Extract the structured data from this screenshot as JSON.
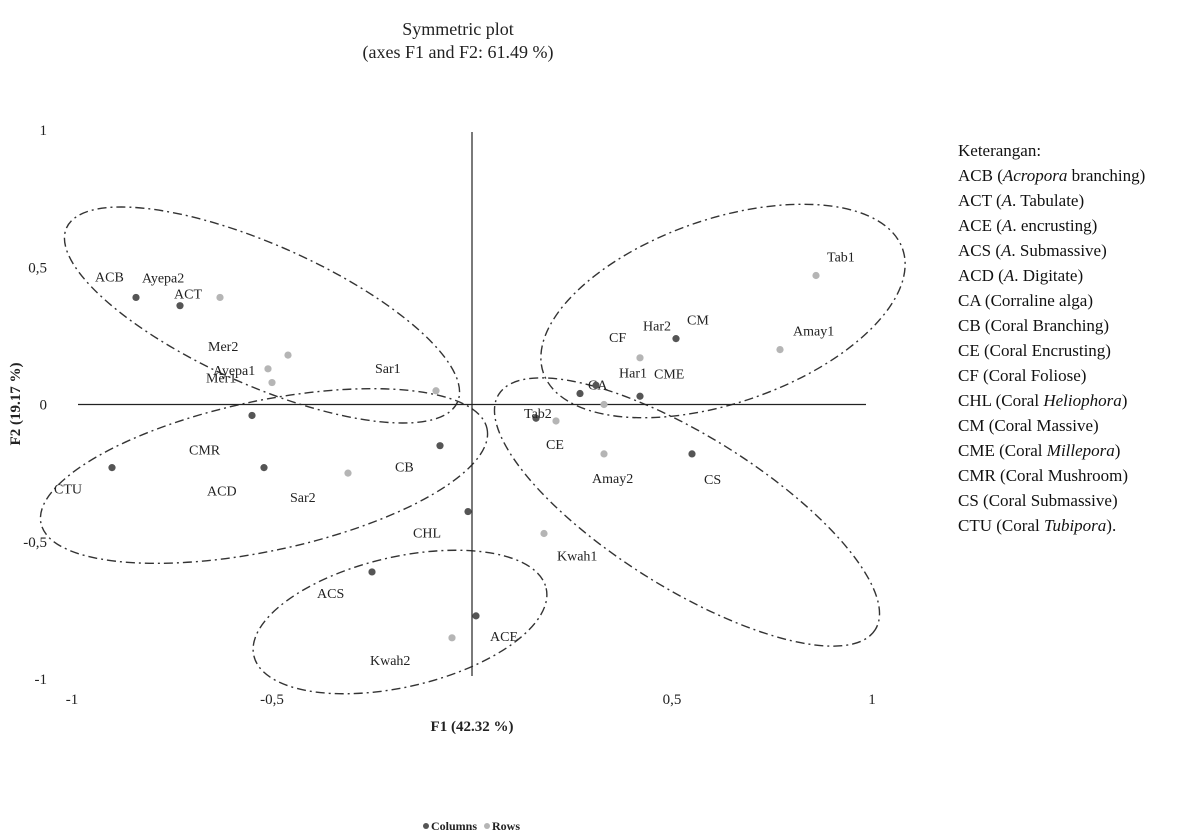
{
  "chart_data": {
    "type": "scatter",
    "title": "Symmetric plot",
    "subtitle": "(axes F1 and F2: 61.49 %)",
    "xlabel": "F1 (42.32 %)",
    "ylabel": "F2 (19.17 %)",
    "xlim": [
      -1,
      1
    ],
    "ylim": [
      -1,
      1
    ],
    "xticks": [
      "-1",
      "-0,5",
      "0",
      "0,5",
      "1"
    ],
    "yticks": [
      "1",
      "0,5",
      "0",
      "-0,5",
      "-1"
    ],
    "grid": false,
    "legend_position": "bottom",
    "series": [
      {
        "name": "Columns",
        "color": "#555555",
        "points": [
          {
            "label": "ACB",
            "x": -0.84,
            "y": 0.39
          },
          {
            "label": "ACT",
            "x": -0.73,
            "y": 0.36
          },
          {
            "label": "CMR",
            "x": -0.55,
            "y": -0.04
          },
          {
            "label": "CTU",
            "x": -0.9,
            "y": -0.23
          },
          {
            "label": "ACD",
            "x": -0.52,
            "y": -0.23
          },
          {
            "label": "CB",
            "x": -0.08,
            "y": -0.15
          },
          {
            "label": "CHL",
            "x": -0.01,
            "y": -0.39
          },
          {
            "label": "ACS",
            "x": -0.25,
            "y": -0.61
          },
          {
            "label": "ACE",
            "x": 0.01,
            "y": -0.77
          },
          {
            "label": "CA",
            "x": 0.27,
            "y": 0.04
          },
          {
            "label": "Har1",
            "x": 0.31,
            "y": 0.07
          },
          {
            "label": "CME",
            "x": 0.42,
            "y": 0.03
          },
          {
            "label": "CM",
            "x": 0.51,
            "y": 0.24
          },
          {
            "label": "CE",
            "x": 0.16,
            "y": -0.05
          },
          {
            "label": "CS",
            "x": 0.55,
            "y": -0.18
          }
        ]
      },
      {
        "name": "Rows",
        "color": "#b5b5b5",
        "points": [
          {
            "label": "Ayepa2",
            "x": -0.63,
            "y": 0.39
          },
          {
            "label": "Ayepa1",
            "x": -0.51,
            "y": 0.13
          },
          {
            "label": "Mer2",
            "x": -0.46,
            "y": 0.18
          },
          {
            "label": "Mer1",
            "x": -0.5,
            "y": 0.08
          },
          {
            "label": "Sar1",
            "x": -0.09,
            "y": 0.05
          },
          {
            "label": "Sar2",
            "x": -0.31,
            "y": -0.25
          },
          {
            "label": "Kwah1",
            "x": 0.18,
            "y": -0.47
          },
          {
            "label": "Kwah2",
            "x": -0.05,
            "y": -0.85
          },
          {
            "label": "CF",
            "x": 0.42,
            "y": 0.17
          },
          {
            "label": "Tab1",
            "x": 0.86,
            "y": 0.47
          },
          {
            "label": "Amay1",
            "x": 0.77,
            "y": 0.2
          },
          {
            "label": "Har2",
            "x": 0.33,
            "y": 0.0
          },
          {
            "label": "Tab2",
            "x": 0.21,
            "y": -0.06
          },
          {
            "label": "Amay2",
            "x": 0.33,
            "y": -0.18
          }
        ]
      }
    ]
  },
  "keterangan": {
    "title": "Keterangan:",
    "items": [
      {
        "code": "ACB (",
        "italic": "Acropora",
        "rest": " branching)"
      },
      {
        "code": "ACT (",
        "italic": "A",
        "rest": ". Tabulate)"
      },
      {
        "code": "ACE (",
        "italic": "A",
        "rest": ". encrusting)"
      },
      {
        "code": "ACS (",
        "italic": "A",
        "rest": ". Submassive)"
      },
      {
        "code": "ACD (",
        "italic": "A",
        "rest": ". Digitate)"
      },
      {
        "code": "CA (Corraline alga)",
        "italic": "",
        "rest": ""
      },
      {
        "code": "CB (Coral Branching)",
        "italic": "",
        "rest": ""
      },
      {
        "code": "CE (Coral Encrusting)",
        "italic": "",
        "rest": ""
      },
      {
        "code": "CF (Coral Foliose)",
        "italic": "",
        "rest": ""
      },
      {
        "code": "CHL (Coral ",
        "italic": "Heliophora",
        "rest": ")"
      },
      {
        "code": "CM (Coral Massive)",
        "italic": "",
        "rest": ""
      },
      {
        "code": "CME (Coral ",
        "italic": "Millepora",
        "rest": ")"
      },
      {
        "code": "CMR (Coral Mushroom)",
        "italic": "",
        "rest": ""
      },
      {
        "code": "CS (Coral Submassive)",
        "italic": "",
        "rest": ""
      },
      {
        "code": "CTU (Coral ",
        "italic": "Tubipora",
        "rest": ")."
      }
    ]
  }
}
